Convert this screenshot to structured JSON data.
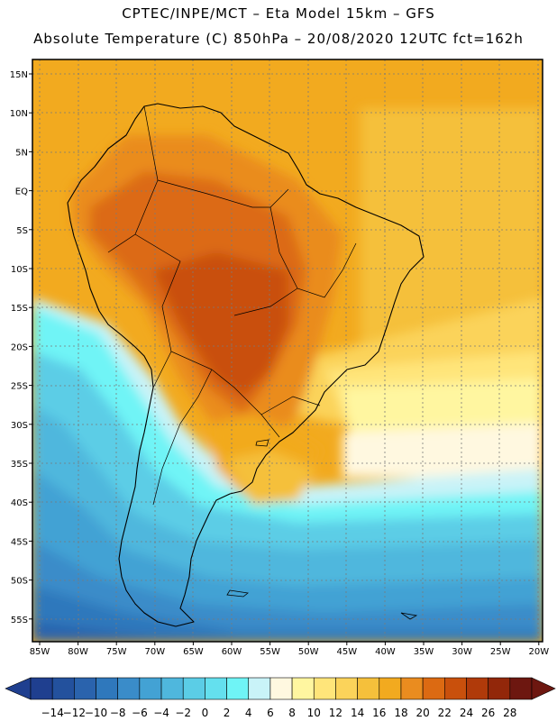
{
  "header": {
    "line1": "CPTEC/INPE/MCT –  Eta Model 15km – GFS",
    "line2": "Absolute Temperature (C) 850hPa – 20/08/2020 12UTC fct=162h"
  },
  "map": {
    "lat_labels": [
      "15N",
      "10N",
      "5N",
      "EQ",
      "5S",
      "10S",
      "15S",
      "20S",
      "25S",
      "30S",
      "35S",
      "40S",
      "45S",
      "50S",
      "55S"
    ],
    "lon_labels": [
      "85W",
      "80W",
      "75W",
      "70W",
      "65W",
      "60W",
      "55W",
      "50W",
      "45W",
      "40W",
      "35W",
      "30W",
      "25W",
      "20W"
    ]
  },
  "colorbar": {
    "labels": [
      "-14",
      "-12",
      "-10",
      "-8",
      "-6",
      "-4",
      "-2",
      "0",
      "2",
      "4",
      "6",
      "8",
      "10",
      "12",
      "14",
      "16",
      "18",
      "20",
      "22",
      "24",
      "26",
      "28"
    ],
    "colors": [
      "#1f3f8f",
      "#23519d",
      "#2a63ad",
      "#2f78bc",
      "#3a8cc9",
      "#43a2d4",
      "#4fb7dd",
      "#5bcde6",
      "#64e0ee",
      "#6ff4f6",
      "#c9f3f8",
      "#fff8e0",
      "#fff6a0",
      "#ffe57a",
      "#fbd35a",
      "#f5c03b",
      "#f2aa1f",
      "#ea8c1f",
      "#dc6a12",
      "#c9500c",
      "#b03a0a",
      "#92270a",
      "#6d1710"
    ]
  }
}
